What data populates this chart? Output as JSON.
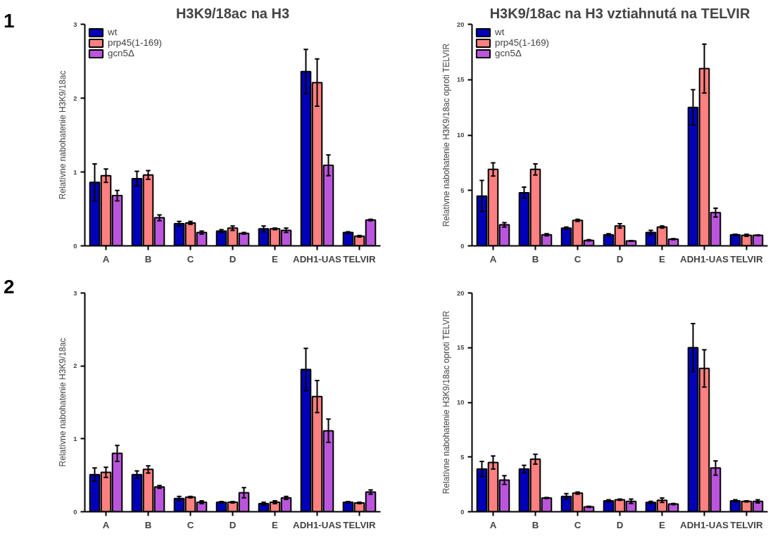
{
  "chart_data": [
    {
      "type": "bar",
      "title": "H3K9/18ac na H3",
      "ylabel": "Relatívne nabohatenie H3K9/18ac",
      "annotations": [
        "1"
      ],
      "categories": [
        "A",
        "B",
        "C",
        "D",
        "E",
        "ADH1-UAS",
        "TELVIR"
      ],
      "ylim": [
        0,
        3
      ],
      "yticks": [
        0,
        1,
        2,
        3
      ],
      "grid": false,
      "legend": "top left",
      "series": [
        {
          "name": "wt",
          "color": "#0000bb",
          "values": [
            0.86,
            0.91,
            0.3,
            0.2,
            0.23,
            2.36,
            0.18
          ],
          "errors": [
            0.25,
            0.1,
            0.03,
            0.02,
            0.04,
            0.3,
            0.01
          ]
        },
        {
          "name": "prp45(1-169)",
          "color": "#ff8080",
          "values": [
            0.95,
            0.96,
            0.31,
            0.24,
            0.23,
            2.21,
            0.13
          ],
          "errors": [
            0.09,
            0.06,
            0.02,
            0.03,
            0.01,
            0.32,
            0.01
          ]
        },
        {
          "name": "gcn5Δ",
          "color": "#bb55dd",
          "values": [
            0.68,
            0.38,
            0.18,
            0.17,
            0.21,
            1.09,
            0.35
          ],
          "errors": [
            0.07,
            0.04,
            0.02,
            0.01,
            0.03,
            0.14,
            0.01
          ]
        }
      ]
    },
    {
      "type": "bar",
      "title": "H3K9/18ac na H3 vztiahnutá na TELVIR",
      "ylabel": "Relatívne nabohatenie H3K9/18ac oproti TELVIR",
      "categories": [
        "A",
        "B",
        "C",
        "D",
        "E",
        "ADH1-UAS",
        "TELVIR"
      ],
      "ylim": [
        0,
        20
      ],
      "yticks": [
        0,
        5,
        10,
        15,
        20
      ],
      "grid": false,
      "legend": "top left",
      "series": [
        {
          "name": "wt",
          "color": "#0000bb",
          "values": [
            4.5,
            4.8,
            1.6,
            1.0,
            1.2,
            12.5,
            1.0
          ],
          "errors": [
            1.4,
            0.5,
            0.1,
            0.1,
            0.2,
            1.6,
            0.05
          ]
        },
        {
          "name": "prp45(1-169)",
          "color": "#ff8080",
          "values": [
            6.9,
            6.9,
            2.3,
            1.8,
            1.7,
            16.0,
            0.95
          ],
          "errors": [
            0.6,
            0.5,
            0.1,
            0.2,
            0.1,
            2.2,
            0.1
          ]
        },
        {
          "name": "gcn5Δ",
          "color": "#bb55dd",
          "values": [
            1.9,
            1.0,
            0.5,
            0.45,
            0.6,
            3.0,
            0.95
          ],
          "errors": [
            0.2,
            0.1,
            0.05,
            0.03,
            0.05,
            0.4,
            0.03
          ]
        }
      ]
    },
    {
      "type": "bar",
      "ylabel": "Relatívne nabohatenie H3K9/18ac",
      "annotations": [
        "2"
      ],
      "categories": [
        "A",
        "B",
        "C",
        "D",
        "E",
        "ADH1-UAS",
        "TELVIR"
      ],
      "ylim": [
        0,
        3
      ],
      "yticks": [
        0,
        1,
        2,
        3
      ],
      "grid": false,
      "series": [
        {
          "color": "#0000bb",
          "values": [
            0.51,
            0.51,
            0.18,
            0.13,
            0.11,
            1.95,
            0.13
          ],
          "errors": [
            0.09,
            0.05,
            0.03,
            0.01,
            0.02,
            0.29,
            0.01
          ]
        },
        {
          "color": "#ff8080",
          "values": [
            0.54,
            0.58,
            0.2,
            0.13,
            0.13,
            1.58,
            0.12
          ],
          "errors": [
            0.07,
            0.05,
            0.01,
            0.01,
            0.02,
            0.22,
            0.01
          ]
        },
        {
          "color": "#bb55dd",
          "values": [
            0.8,
            0.34,
            0.13,
            0.26,
            0.19,
            1.11,
            0.27
          ],
          "errors": [
            0.11,
            0.02,
            0.02,
            0.07,
            0.02,
            0.16,
            0.03
          ]
        }
      ]
    },
    {
      "type": "bar",
      "ylabel": "Relatívne nabohatenie H3K9/18ac oproti TELVIR",
      "categories": [
        "A",
        "B",
        "C",
        "D",
        "E",
        "ADH1-UAS",
        "TELVIR"
      ],
      "ylim": [
        0,
        20
      ],
      "yticks": [
        0,
        5,
        10,
        15,
        20
      ],
      "grid": false,
      "series": [
        {
          "color": "#0000bb",
          "values": [
            3.9,
            3.9,
            1.4,
            1.0,
            0.85,
            15.0,
            1.0
          ],
          "errors": [
            0.7,
            0.35,
            0.25,
            0.1,
            0.1,
            2.2,
            0.1
          ]
        },
        {
          "color": "#ff8080",
          "values": [
            4.5,
            4.8,
            1.7,
            1.1,
            1.05,
            13.1,
            0.95
          ],
          "errors": [
            0.6,
            0.45,
            0.1,
            0.05,
            0.2,
            1.7,
            0.05
          ]
        },
        {
          "color": "#bb55dd",
          "values": [
            2.9,
            1.25,
            0.45,
            0.95,
            0.7,
            4.0,
            0.95
          ],
          "errors": [
            0.4,
            0.05,
            0.05,
            0.2,
            0.05,
            0.65,
            0.15
          ]
        }
      ]
    }
  ]
}
